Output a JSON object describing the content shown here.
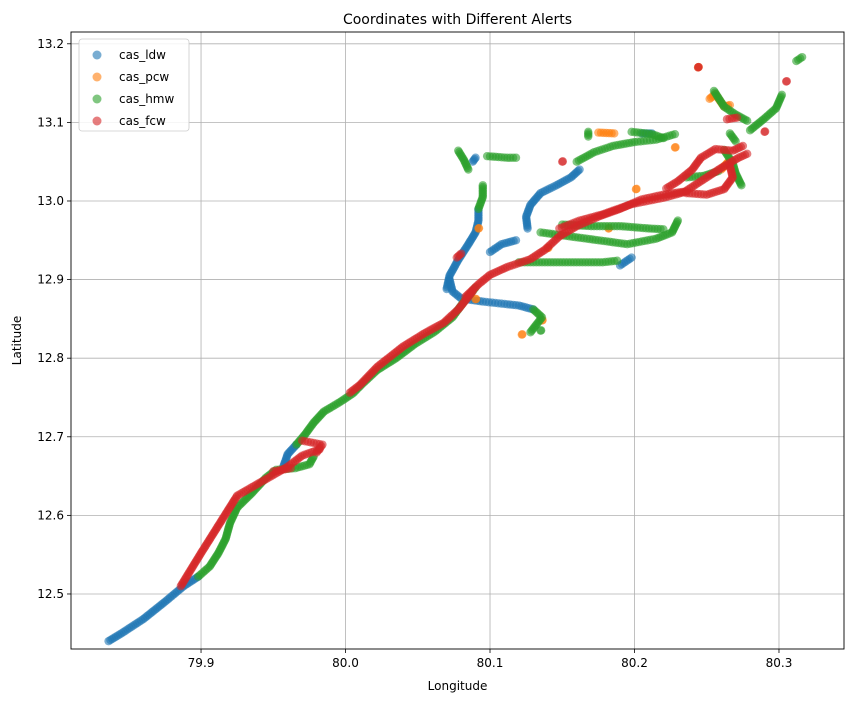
{
  "chart_data": {
    "type": "scatter",
    "title": "Coordinates with Different Alerts",
    "xlabel": "Longitude",
    "ylabel": "Latitude",
    "xlim": [
      79.81,
      80.345
    ],
    "ylim": [
      12.43,
      13.215
    ],
    "xticks": [
      79.9,
      80.0,
      80.1,
      80.2,
      80.3
    ],
    "xtick_labels": [
      "79.9",
      "80.0",
      "80.1",
      "80.2",
      "80.3"
    ],
    "yticks": [
      12.5,
      12.6,
      12.7,
      12.8,
      12.9,
      13.0,
      13.1,
      13.2
    ],
    "ytick_labels": [
      "12.5",
      "12.6",
      "12.7",
      "12.8",
      "12.9",
      "13.0",
      "13.1",
      "13.2"
    ],
    "grid": true,
    "legend_position": "top-left",
    "marker_alpha": 0.6,
    "series": [
      {
        "name": "cas_ldw",
        "color": "#1f77b4",
        "paths": [
          [
            [
              79.836,
              12.44
            ],
            [
              79.845,
              12.45
            ],
            [
              79.86,
              12.468
            ],
            [
              79.875,
              12.49
            ],
            [
              79.888,
              12.51
            ],
            [
              79.898,
              12.522
            ]
          ],
          [
            [
              79.957,
              12.662
            ],
            [
              79.96,
              12.678
            ],
            [
              79.966,
              12.69
            ]
          ],
          [
            [
              80.07,
              12.888
            ],
            [
              80.072,
              12.905
            ],
            [
              80.078,
              12.925
            ],
            [
              80.085,
              12.945
            ],
            [
              80.09,
              12.96
            ],
            [
              80.092,
              12.975
            ],
            [
              80.092,
              12.99
            ]
          ],
          [
            [
              80.072,
              12.9
            ],
            [
              80.074,
              12.885
            ],
            [
              80.08,
              12.876
            ],
            [
              80.095,
              12.872
            ],
            [
              80.11,
              12.869
            ],
            [
              80.12,
              12.867
            ],
            [
              80.13,
              12.862
            ]
          ],
          [
            [
              80.1,
              12.935
            ],
            [
              80.108,
              12.945
            ],
            [
              80.118,
              12.95
            ]
          ],
          [
            [
              80.126,
              12.965
            ],
            [
              80.125,
              12.98
            ],
            [
              80.128,
              12.995
            ],
            [
              80.135,
              13.01
            ],
            [
              80.146,
              13.02
            ],
            [
              80.156,
              13.03
            ],
            [
              80.162,
              13.04
            ]
          ],
          [
            [
              80.19,
              12.918
            ],
            [
              80.198,
              12.928
            ]
          ],
          [
            [
              80.205,
              13.086
            ],
            [
              80.212,
              13.086
            ]
          ],
          [
            [
              80.088,
              13.05
            ],
            [
              80.09,
              13.055
            ]
          ]
        ]
      },
      {
        "name": "cas_pcw",
        "color": "#ff7f0e",
        "paths": [
          [
            [
              80.122,
              12.83
            ]
          ],
          [
            [
              80.136,
              12.848
            ]
          ],
          [
            [
              80.092,
              12.965
            ]
          ],
          [
            [
              80.244,
              13.17
            ]
          ],
          [
            [
              80.252,
              13.13
            ],
            [
              80.256,
              13.136
            ],
            [
              80.262,
              13.12
            ],
            [
              80.266,
              13.122
            ]
          ],
          [
            [
              80.228,
              13.068
            ]
          ],
          [
            [
              80.201,
              13.015
            ]
          ],
          [
            [
              80.175,
              13.087
            ],
            [
              80.186,
              13.086
            ]
          ],
          [
            [
              80.26,
              13.04
            ],
            [
              80.265,
              13.05
            ]
          ],
          [
            [
              80.09,
              12.875
            ]
          ],
          [
            [
              80.182,
              12.965
            ]
          ],
          [
            [
              80.14,
              12.94
            ]
          ]
        ]
      },
      {
        "name": "cas_hmw",
        "color": "#2ca02c",
        "paths": [
          [
            [
              79.898,
              12.522
            ],
            [
              79.906,
              12.535
            ],
            [
              79.912,
              12.552
            ],
            [
              79.917,
              12.57
            ],
            [
              79.92,
              12.59
            ],
            [
              79.925,
              12.61
            ],
            [
              79.935,
              12.628
            ],
            [
              79.945,
              12.648
            ],
            [
              79.952,
              12.658
            ],
            [
              79.965,
              12.66
            ],
            [
              79.975,
              12.665
            ],
            [
              79.978,
              12.675
            ]
          ],
          [
            [
              79.966,
              12.69
            ],
            [
              79.972,
              12.703
            ],
            [
              79.978,
              12.718
            ],
            [
              79.985,
              12.732
            ],
            [
              79.996,
              12.744
            ],
            [
              80.005,
              12.755
            ],
            [
              80.012,
              12.768
            ],
            [
              80.022,
              12.785
            ],
            [
              80.035,
              12.8
            ],
            [
              80.048,
              12.818
            ],
            [
              80.062,
              12.834
            ],
            [
              80.074,
              12.852
            ],
            [
              80.082,
              12.872
            ],
            [
              80.09,
              12.89
            ]
          ],
          [
            [
              80.092,
              12.99
            ],
            [
              80.095,
              13.005
            ],
            [
              80.095,
              13.02
            ]
          ],
          [
            [
              80.078,
              13.064
            ],
            [
              80.082,
              13.052
            ],
            [
              80.085,
              13.04
            ]
          ],
          [
            [
              80.098,
              13.057
            ],
            [
              80.112,
              13.055
            ],
            [
              80.118,
              13.055
            ]
          ],
          [
            [
              80.13,
              12.862
            ],
            [
              80.136,
              12.852
            ],
            [
              80.128,
              12.833
            ]
          ],
          [
            [
              80.12,
              12.922
            ],
            [
              80.14,
              12.922
            ],
            [
              80.16,
              12.922
            ],
            [
              80.178,
              12.922
            ],
            [
              80.188,
              12.924
            ]
          ],
          [
            [
              80.135,
              12.96
            ],
            [
              80.155,
              12.955
            ],
            [
              80.175,
              12.95
            ],
            [
              80.195,
              12.945
            ],
            [
              80.215,
              12.952
            ],
            [
              80.226,
              12.96
            ],
            [
              80.23,
              12.975
            ]
          ],
          [
            [
              80.15,
              12.97
            ],
            [
              80.17,
              12.968
            ],
            [
              80.19,
              12.968
            ],
            [
              80.21,
              12.965
            ],
            [
              80.22,
              12.964
            ]
          ],
          [
            [
              80.16,
              13.05
            ],
            [
              80.172,
              13.062
            ],
            [
              80.185,
              13.07
            ],
            [
              80.2,
              13.075
            ],
            [
              80.215,
              13.078
            ],
            [
              80.228,
              13.085
            ]
          ],
          [
            [
              80.168,
              13.082
            ],
            [
              80.168,
              13.088
            ]
          ],
          [
            [
              80.198,
              13.088
            ],
            [
              80.212,
              13.085
            ],
            [
              80.22,
              13.08
            ]
          ],
          [
            [
              80.255,
              13.14
            ],
            [
              80.262,
              13.12
            ],
            [
              80.27,
              13.11
            ],
            [
              80.278,
              13.102
            ]
          ],
          [
            [
              80.28,
              13.09
            ],
            [
              80.29,
              13.105
            ],
            [
              80.298,
              13.118
            ],
            [
              80.302,
              13.135
            ]
          ],
          [
            [
              80.262,
              13.065
            ],
            [
              80.268,
              13.048
            ],
            [
              80.27,
              13.035
            ],
            [
              80.274,
              13.02
            ]
          ],
          [
            [
              80.236,
              13.03
            ],
            [
              80.248,
              13.032
            ],
            [
              80.258,
              13.038
            ]
          ],
          [
            [
              80.312,
              13.178
            ],
            [
              80.316,
              13.183
            ]
          ],
          [
            [
              80.266,
              13.086
            ],
            [
              80.27,
              13.076
            ]
          ],
          [
            [
              80.135,
              12.835
            ]
          ]
        ]
      },
      {
        "name": "cas_fcw",
        "color": "#d62728",
        "paths": [
          [
            [
              79.886,
              12.51
            ],
            [
              79.9,
              12.552
            ],
            [
              79.925,
              12.625
            ],
            [
              79.96,
              12.662
            ],
            [
              79.97,
              12.676
            ],
            [
              79.982,
              12.684
            ]
          ],
          [
            [
              79.97,
              12.695
            ],
            [
              79.984,
              12.69
            ],
            [
              79.98,
              12.68
            ]
          ],
          [
            [
              80.003,
              12.756
            ],
            [
              80.01,
              12.766
            ],
            [
              80.022,
              12.789
            ],
            [
              80.04,
              12.815
            ],
            [
              80.055,
              12.832
            ],
            [
              80.068,
              12.845
            ],
            [
              80.078,
              12.862
            ],
            [
              80.088,
              12.885
            ]
          ],
          [
            [
              80.083,
              12.878
            ],
            [
              80.092,
              12.894
            ],
            [
              80.1,
              12.906
            ],
            [
              80.112,
              12.916
            ],
            [
              80.128,
              12.926
            ],
            [
              80.138,
              12.938
            ],
            [
              80.148,
              12.955
            ],
            [
              80.16,
              12.968
            ],
            [
              80.175,
              12.98
            ],
            [
              80.19,
              12.99
            ],
            [
              80.205,
              13.002
            ],
            [
              80.22,
              13.008
            ],
            [
              80.235,
              13.012
            ],
            [
              80.25,
              13.03
            ],
            [
              80.26,
              13.042
            ],
            [
              80.272,
              13.055
            ],
            [
              80.278,
              13.06
            ]
          ],
          [
            [
              80.148,
              12.965
            ],
            [
              80.162,
              12.975
            ],
            [
              80.178,
              12.983
            ],
            [
              80.198,
              12.996
            ],
            [
              80.22,
              13.004
            ],
            [
              80.236,
              13.012
            ]
          ],
          [
            [
              80.222,
              13.016
            ],
            [
              80.23,
              13.025
            ],
            [
              80.24,
              13.04
            ],
            [
              80.246,
              13.055
            ],
            [
              80.256,
              13.066
            ],
            [
              80.268,
              13.064
            ],
            [
              80.275,
              13.07
            ]
          ],
          [
            [
              80.236,
              13.01
            ],
            [
              80.25,
              13.008
            ],
            [
              80.262,
              13.015
            ],
            [
              80.268,
              13.03
            ],
            [
              80.266,
              13.045
            ]
          ],
          [
            [
              80.077,
              12.928
            ],
            [
              80.08,
              12.933
            ]
          ],
          [
            [
              80.264,
              13.104
            ],
            [
              80.271,
              13.106
            ]
          ],
          [
            [
              80.305,
              13.152
            ]
          ],
          [
            [
              80.29,
              13.088
            ]
          ],
          [
            [
              80.244,
              13.17
            ]
          ],
          [
            [
              80.15,
              13.05
            ]
          ],
          [
            [
              79.95,
              12.656
            ],
            [
              79.962,
              12.66
            ]
          ]
        ]
      }
    ]
  }
}
